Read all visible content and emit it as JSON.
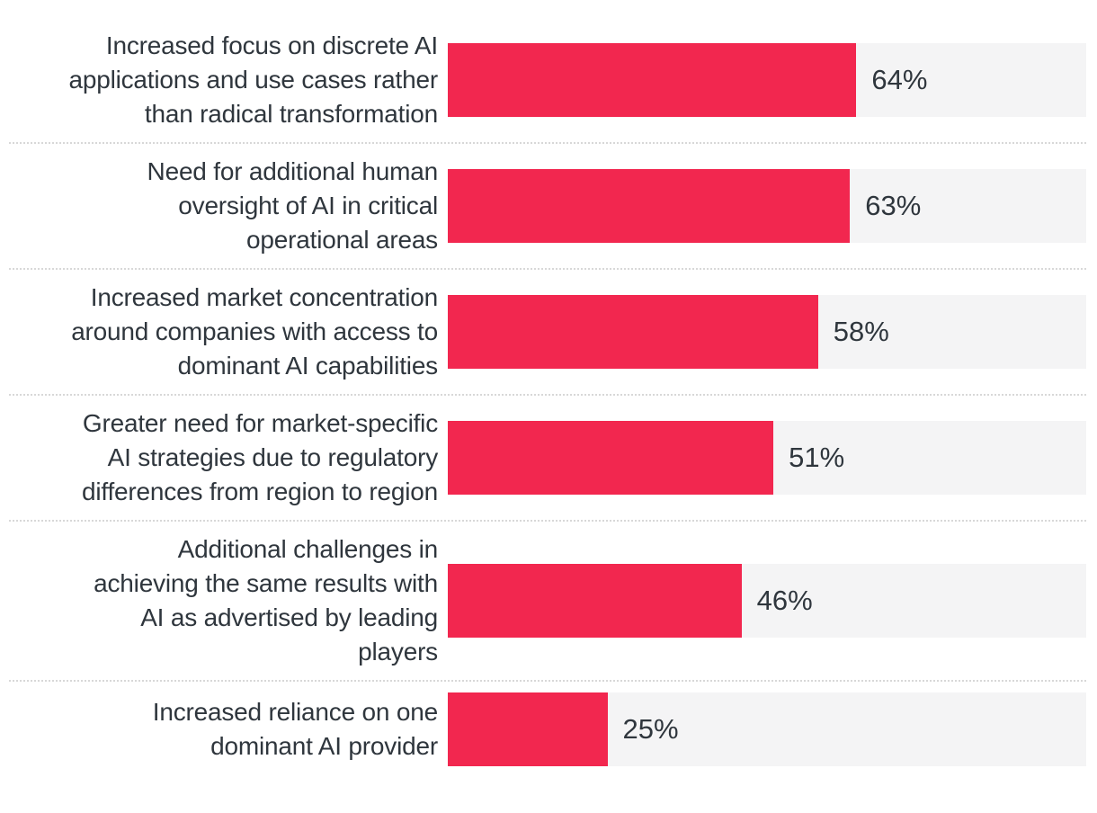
{
  "chart_data": {
    "type": "bar",
    "orientation": "horizontal",
    "title": "",
    "unit": "%",
    "xlim": [
      0,
      100
    ],
    "grid": false,
    "legend": false,
    "categories": [
      "Increased focus on discrete AI applications and use cases rather than radical transformation",
      "Need for additional human oversight of AI in critical operational areas",
      "Increased market concentration around companies with access to dominant AI capabilities",
      "Greater need for market-specific AI strategies due to regulatory differences from region to region",
      "Additional challenges in achieving the same results with AI as advertised by leading players",
      "Increased reliance on one dominant AI provider"
    ],
    "values": [
      64,
      63,
      58,
      51,
      46,
      25
    ],
    "rows": [
      {
        "label": "Increased focus on discrete AI applications and use cases rather than radical transformation",
        "label_lines": [
          "Increased focus on discrete AI",
          "applications and use cases rather",
          "than radical transformation"
        ],
        "value": 64,
        "value_label": "64%"
      },
      {
        "label": "Need for additional human oversight of AI in critical operational areas",
        "label_lines": [
          "Need for additional human",
          "oversight of AI in critical",
          "operational areas"
        ],
        "value": 63,
        "value_label": "63%"
      },
      {
        "label": "Increased market concentration around companies with access to dominant AI capabilities",
        "label_lines": [
          "Increased market concentration",
          "around companies with access to",
          "dominant AI capabilities"
        ],
        "value": 58,
        "value_label": "58%"
      },
      {
        "label": "Greater need for market-specific AI strategies due to regulatory differences from region to region",
        "label_lines": [
          "Greater need for market-specific",
          "AI strategies due to regulatory",
          "differences from region to region"
        ],
        "value": 51,
        "value_label": "51%"
      },
      {
        "label": "Additional challenges in achieving the same results with AI as advertised by leading players",
        "label_lines": [
          "Additional challenges in",
          "achieving the same results with",
          "AI as advertised by leading",
          "players"
        ],
        "value": 46,
        "value_label": "46%"
      },
      {
        "label": "Increased reliance on one dominant AI provider",
        "label_lines": [
          "Increased reliance on one",
          "dominant AI provider"
        ],
        "value": 25,
        "value_label": "25%"
      }
    ],
    "colors": {
      "bar": "#F2274F",
      "track": "#F4F4F5",
      "text": "#2F363D",
      "separator": "#D8D8D8",
      "background": "#FFFFFF"
    }
  }
}
